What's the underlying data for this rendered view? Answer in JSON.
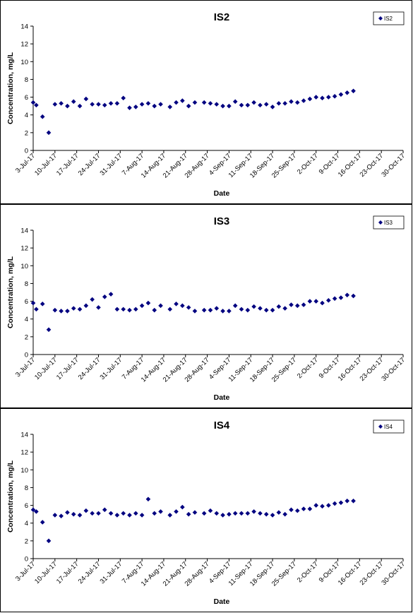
{
  "chart_data": [
    {
      "type": "scatter",
      "title": "IS2",
      "xlabel": "Date",
      "ylabel": "Concentration, mg/L",
      "xlim": [
        "2017-07-03",
        "2017-10-30"
      ],
      "ylim": [
        0,
        14
      ],
      "yticks": [
        0,
        2,
        4,
        6,
        8,
        10,
        12,
        14
      ],
      "xticks": [
        "3-Jul-17",
        "10-Jul-17",
        "17-Jul-17",
        "24-Jul-17",
        "31-Jul-17",
        "7-Aug-17",
        "14-Aug-17",
        "21-Aug-17",
        "28-Aug-17",
        "4-Sep-17",
        "11-Sep-17",
        "18-Sep-17",
        "25-Sep-17",
        "2-Oct-17",
        "9-Oct-17",
        "16-Oct-17",
        "23-Oct-17",
        "30-Oct-17"
      ],
      "grid": false,
      "legend": "top-right",
      "color": "#000080",
      "series": [
        {
          "name": "IS2",
          "points": [
            [
              "2017-07-03",
              5.4
            ],
            [
              "2017-07-04",
              5.1
            ],
            [
              "2017-07-06",
              3.8
            ],
            [
              "2017-07-08",
              2.0
            ],
            [
              "2017-07-10",
              5.2
            ],
            [
              "2017-07-12",
              5.3
            ],
            [
              "2017-07-14",
              5.0
            ],
            [
              "2017-07-16",
              5.5
            ],
            [
              "2017-07-18",
              5.0
            ],
            [
              "2017-07-20",
              5.8
            ],
            [
              "2017-07-22",
              5.2
            ],
            [
              "2017-07-24",
              5.2
            ],
            [
              "2017-07-26",
              5.1
            ],
            [
              "2017-07-28",
              5.3
            ],
            [
              "2017-07-30",
              5.3
            ],
            [
              "2017-08-01",
              5.9
            ],
            [
              "2017-08-03",
              4.8
            ],
            [
              "2017-08-05",
              4.9
            ],
            [
              "2017-08-07",
              5.2
            ],
            [
              "2017-08-09",
              5.3
            ],
            [
              "2017-08-11",
              5.0
            ],
            [
              "2017-08-13",
              5.2
            ],
            [
              "2017-08-16",
              4.9
            ],
            [
              "2017-08-18",
              5.4
            ],
            [
              "2017-08-20",
              5.6
            ],
            [
              "2017-08-22",
              5.0
            ],
            [
              "2017-08-24",
              5.4
            ],
            [
              "2017-08-27",
              5.4
            ],
            [
              "2017-08-29",
              5.3
            ],
            [
              "2017-08-31",
              5.2
            ],
            [
              "2017-09-02",
              5.0
            ],
            [
              "2017-09-04",
              5.0
            ],
            [
              "2017-09-06",
              5.5
            ],
            [
              "2017-09-08",
              5.1
            ],
            [
              "2017-09-10",
              5.1
            ],
            [
              "2017-09-12",
              5.4
            ],
            [
              "2017-09-14",
              5.1
            ],
            [
              "2017-09-16",
              5.2
            ],
            [
              "2017-09-18",
              4.9
            ],
            [
              "2017-09-20",
              5.3
            ],
            [
              "2017-09-22",
              5.3
            ],
            [
              "2017-09-24",
              5.5
            ],
            [
              "2017-09-26",
              5.4
            ],
            [
              "2017-09-28",
              5.6
            ],
            [
              "2017-09-30",
              5.8
            ],
            [
              "2017-10-02",
              6.0
            ],
            [
              "2017-10-04",
              5.9
            ],
            [
              "2017-10-06",
              6.0
            ],
            [
              "2017-10-08",
              6.1
            ],
            [
              "2017-10-10",
              6.3
            ],
            [
              "2017-10-12",
              6.5
            ],
            [
              "2017-10-14",
              6.7
            ]
          ]
        }
      ]
    },
    {
      "type": "scatter",
      "title": "IS3",
      "xlabel": "Date",
      "ylabel": "Concentration, mg/L",
      "xlim": [
        "2017-07-03",
        "2017-10-30"
      ],
      "ylim": [
        0,
        14
      ],
      "yticks": [
        0,
        2,
        4,
        6,
        8,
        10,
        12,
        14
      ],
      "xticks": [
        "3-Jul-17",
        "10-Jul-17",
        "17-Jul-17",
        "24-Jul-17",
        "31-Jul-17",
        "7-Aug-17",
        "14-Aug-17",
        "21-Aug-17",
        "28-Aug-17",
        "4-Sep-17",
        "11-Sep-17",
        "18-Sep-17",
        "25-Sep-17",
        "2-Oct-17",
        "9-Oct-17",
        "16-Oct-17",
        "23-Oct-17",
        "30-Oct-17"
      ],
      "grid": false,
      "legend": "top-right",
      "color": "#000080",
      "series": [
        {
          "name": "IS3",
          "points": [
            [
              "2017-07-03",
              5.8
            ],
            [
              "2017-07-04",
              5.1
            ],
            [
              "2017-07-06",
              5.7
            ],
            [
              "2017-07-08",
              2.8
            ],
            [
              "2017-07-10",
              5.0
            ],
            [
              "2017-07-12",
              4.9
            ],
            [
              "2017-07-14",
              4.9
            ],
            [
              "2017-07-16",
              5.2
            ],
            [
              "2017-07-18",
              5.1
            ],
            [
              "2017-07-20",
              5.5
            ],
            [
              "2017-07-22",
              6.2
            ],
            [
              "2017-07-24",
              5.3
            ],
            [
              "2017-07-26",
              6.5
            ],
            [
              "2017-07-28",
              6.8
            ],
            [
              "2017-07-30",
              5.1
            ],
            [
              "2017-08-01",
              5.1
            ],
            [
              "2017-08-03",
              5.0
            ],
            [
              "2017-08-05",
              5.1
            ],
            [
              "2017-08-07",
              5.5
            ],
            [
              "2017-08-09",
              5.8
            ],
            [
              "2017-08-11",
              5.0
            ],
            [
              "2017-08-13",
              5.5
            ],
            [
              "2017-08-16",
              5.1
            ],
            [
              "2017-08-18",
              5.7
            ],
            [
              "2017-08-20",
              5.5
            ],
            [
              "2017-08-22",
              5.3
            ],
            [
              "2017-08-24",
              4.9
            ],
            [
              "2017-08-27",
              5.0
            ],
            [
              "2017-08-29",
              5.0
            ],
            [
              "2017-08-31",
              5.2
            ],
            [
              "2017-09-02",
              4.9
            ],
            [
              "2017-09-04",
              4.9
            ],
            [
              "2017-09-06",
              5.5
            ],
            [
              "2017-09-08",
              5.1
            ],
            [
              "2017-09-10",
              5.0
            ],
            [
              "2017-09-12",
              5.4
            ],
            [
              "2017-09-14",
              5.2
            ],
            [
              "2017-09-16",
              5.0
            ],
            [
              "2017-09-18",
              5.0
            ],
            [
              "2017-09-20",
              5.4
            ],
            [
              "2017-09-22",
              5.2
            ],
            [
              "2017-09-24",
              5.6
            ],
            [
              "2017-09-26",
              5.5
            ],
            [
              "2017-09-28",
              5.6
            ],
            [
              "2017-09-30",
              6.0
            ],
            [
              "2017-10-02",
              6.0
            ],
            [
              "2017-10-04",
              5.8
            ],
            [
              "2017-10-06",
              6.1
            ],
            [
              "2017-10-08",
              6.3
            ],
            [
              "2017-10-10",
              6.4
            ],
            [
              "2017-10-12",
              6.7
            ],
            [
              "2017-10-14",
              6.6
            ]
          ]
        }
      ]
    },
    {
      "type": "scatter",
      "title": "IS4",
      "xlabel": "Date",
      "ylabel": "Concentration, mg/L",
      "xlim": [
        "2017-07-03",
        "2017-10-30"
      ],
      "ylim": [
        0,
        14
      ],
      "yticks": [
        0,
        2,
        4,
        6,
        8,
        10,
        12,
        14
      ],
      "xticks": [
        "3-Jul-17",
        "10-Jul-17",
        "17-Jul-17",
        "24-Jul-17",
        "31-Jul-17",
        "7-Aug-17",
        "14-Aug-17",
        "21-Aug-17",
        "28-Aug-17",
        "4-Sep-17",
        "11-Sep-17",
        "18-Sep-17",
        "25-Sep-17",
        "2-Oct-17",
        "9-Oct-17",
        "16-Oct-17",
        "23-Oct-17",
        "30-Oct-17"
      ],
      "grid": false,
      "legend": "top-right",
      "color": "#000080",
      "series": [
        {
          "name": "IS4",
          "points": [
            [
              "2017-07-03",
              5.5
            ],
            [
              "2017-07-04",
              5.3
            ],
            [
              "2017-07-06",
              4.1
            ],
            [
              "2017-07-08",
              2.0
            ],
            [
              "2017-07-10",
              4.9
            ],
            [
              "2017-07-12",
              4.8
            ],
            [
              "2017-07-14",
              5.2
            ],
            [
              "2017-07-16",
              5.0
            ],
            [
              "2017-07-18",
              4.9
            ],
            [
              "2017-07-20",
              5.4
            ],
            [
              "2017-07-22",
              5.1
            ],
            [
              "2017-07-24",
              5.1
            ],
            [
              "2017-07-26",
              5.5
            ],
            [
              "2017-07-28",
              5.1
            ],
            [
              "2017-07-30",
              4.9
            ],
            [
              "2017-08-01",
              5.1
            ],
            [
              "2017-08-03",
              4.9
            ],
            [
              "2017-08-05",
              5.1
            ],
            [
              "2017-08-07",
              4.9
            ],
            [
              "2017-08-09",
              6.7
            ],
            [
              "2017-08-11",
              5.1
            ],
            [
              "2017-08-13",
              5.3
            ],
            [
              "2017-08-16",
              4.9
            ],
            [
              "2017-08-18",
              5.3
            ],
            [
              "2017-08-20",
              5.8
            ],
            [
              "2017-08-22",
              5.0
            ],
            [
              "2017-08-24",
              5.2
            ],
            [
              "2017-08-27",
              5.1
            ],
            [
              "2017-08-29",
              5.4
            ],
            [
              "2017-08-31",
              5.1
            ],
            [
              "2017-09-02",
              4.9
            ],
            [
              "2017-09-04",
              5.0
            ],
            [
              "2017-09-06",
              5.1
            ],
            [
              "2017-09-08",
              5.1
            ],
            [
              "2017-09-10",
              5.1
            ],
            [
              "2017-09-12",
              5.3
            ],
            [
              "2017-09-14",
              5.1
            ],
            [
              "2017-09-16",
              5.0
            ],
            [
              "2017-09-18",
              4.9
            ],
            [
              "2017-09-20",
              5.2
            ],
            [
              "2017-09-22",
              5.0
            ],
            [
              "2017-09-24",
              5.5
            ],
            [
              "2017-09-26",
              5.4
            ],
            [
              "2017-09-28",
              5.6
            ],
            [
              "2017-09-30",
              5.6
            ],
            [
              "2017-10-02",
              6.0
            ],
            [
              "2017-10-04",
              5.9
            ],
            [
              "2017-10-06",
              6.0
            ],
            [
              "2017-10-08",
              6.2
            ],
            [
              "2017-10-10",
              6.3
            ],
            [
              "2017-10-12",
              6.5
            ],
            [
              "2017-10-14",
              6.5
            ]
          ]
        }
      ]
    }
  ]
}
